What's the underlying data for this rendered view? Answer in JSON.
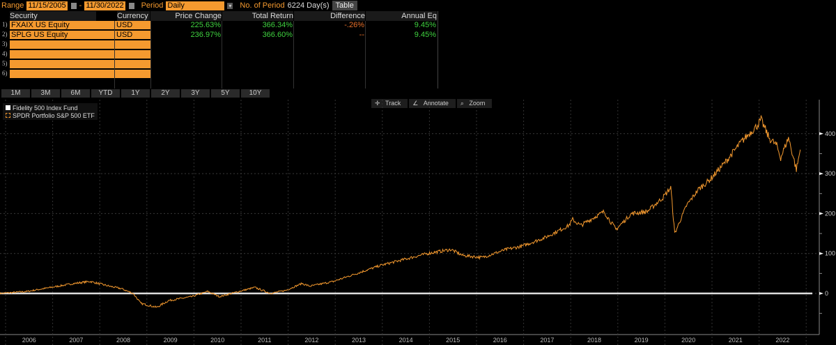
{
  "toolbar": {
    "range_label": "Range",
    "start_date": "11/15/2005",
    "dash": "-",
    "end_date": "11/30/2022",
    "period_label": "Period",
    "period_value": "Daily",
    "num_periods_label": "No. of Period",
    "num_periods_value": "6224 Day(s)",
    "table_button": "Table"
  },
  "table": {
    "headers": [
      "Security",
      "Currency",
      "Price Change",
      "Total Return",
      "Difference",
      "Annual Eq"
    ],
    "rows": [
      {
        "n": "1)",
        "security": "FXAIX US Equity",
        "currency": "USD",
        "price_change": "225.63%",
        "total_return": "366.34%",
        "difference": "-.26%",
        "annual_eq": "9.45%"
      },
      {
        "n": "2)",
        "security": "SPLG US Equity",
        "currency": "USD",
        "price_change": "236.97%",
        "total_return": "366.60%",
        "difference": "--",
        "annual_eq": "9.45%"
      },
      {
        "n": "3)"
      },
      {
        "n": "4)"
      },
      {
        "n": "5)"
      },
      {
        "n": "6)"
      }
    ]
  },
  "periods": [
    "1M",
    "3M",
    "6M",
    "YTD",
    "1Y",
    "2Y",
    "3Y",
    "5Y",
    "10Y"
  ],
  "chart_tools": [
    "Track",
    "Annotate",
    "Zoom"
  ],
  "chart_data": {
    "type": "line",
    "legend_position": "top-left",
    "grid": true,
    "ylim": [
      -50,
      450
    ],
    "y_ticks": [
      0,
      100,
      200,
      300,
      400
    ],
    "x_ticks": [
      "2006",
      "2007",
      "2008",
      "2009",
      "2010",
      "2011",
      "2012",
      "2013",
      "2014",
      "2015",
      "2016",
      "2017",
      "2018",
      "2019",
      "2020",
      "2021",
      "2022"
    ],
    "series": [
      {
        "name": "Fidelity 500 Index Fund",
        "color": "#ffffff",
        "points": [
          [
            "2005-11",
            0
          ],
          [
            "2022-11",
            0
          ]
        ]
      },
      {
        "name": "SPDR Portfolio S&P 500 ETF",
        "color": "#f59a2f",
        "points": [
          [
            "2005-11",
            0
          ],
          [
            "2006-06",
            5
          ],
          [
            "2006-12",
            15
          ],
          [
            "2007-06",
            25
          ],
          [
            "2007-10",
            30
          ],
          [
            "2008-03",
            18
          ],
          [
            "2008-06",
            12
          ],
          [
            "2008-09",
            0
          ],
          [
            "2008-11",
            -25
          ],
          [
            "2009-03",
            -35
          ],
          [
            "2009-06",
            -18
          ],
          [
            "2009-12",
            -8
          ],
          [
            "2010-04",
            5
          ],
          [
            "2010-07",
            -8
          ],
          [
            "2010-12",
            5
          ],
          [
            "2011-04",
            15
          ],
          [
            "2011-08",
            0
          ],
          [
            "2011-12",
            8
          ],
          [
            "2012-04",
            25
          ],
          [
            "2012-06",
            18
          ],
          [
            "2012-12",
            30
          ],
          [
            "2013-06",
            50
          ],
          [
            "2013-12",
            70
          ],
          [
            "2014-06",
            85
          ],
          [
            "2014-12",
            100
          ],
          [
            "2015-06",
            110
          ],
          [
            "2015-09",
            95
          ],
          [
            "2016-02",
            90
          ],
          [
            "2016-08",
            110
          ],
          [
            "2016-12",
            118
          ],
          [
            "2017-06",
            140
          ],
          [
            "2017-12",
            170
          ],
          [
            "2018-01",
            185
          ],
          [
            "2018-03",
            170
          ],
          [
            "2018-09",
            205
          ],
          [
            "2018-12",
            160
          ],
          [
            "2019-04",
            200
          ],
          [
            "2019-08",
            205
          ],
          [
            "2019-12",
            240
          ],
          [
            "2020-02",
            265
          ],
          [
            "2020-03",
            150
          ],
          [
            "2020-06",
            220
          ],
          [
            "2020-09",
            260
          ],
          [
            "2020-12",
            285
          ],
          [
            "2021-04",
            330
          ],
          [
            "2021-08",
            380
          ],
          [
            "2021-12",
            420
          ],
          [
            "2022-01",
            435
          ],
          [
            "2022-03",
            390
          ],
          [
            "2022-05",
            370
          ],
          [
            "2022-06",
            340
          ],
          [
            "2022-08",
            390
          ],
          [
            "2022-10",
            310
          ],
          [
            "2022-11",
            360
          ]
        ]
      }
    ]
  }
}
